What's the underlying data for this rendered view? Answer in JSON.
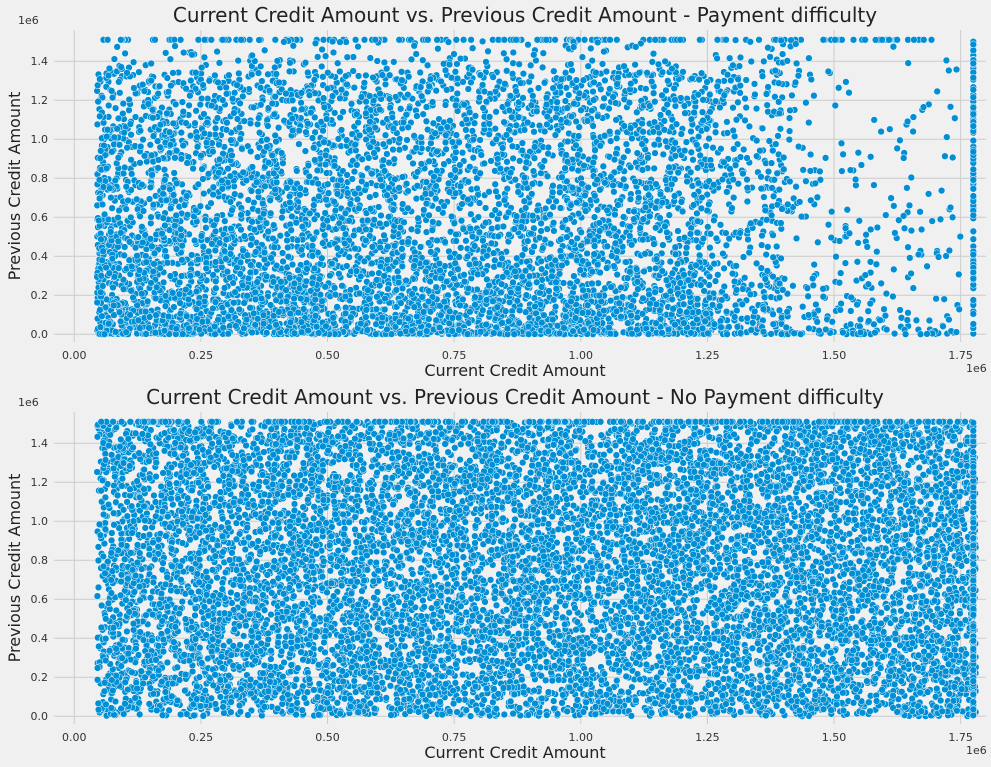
{
  "chart_data": [
    {
      "type": "scatter",
      "title": "Current Credit Amount vs. Previous Credit Amount - Payment difficulty",
      "xlabel": "Current Credit Amount",
      "ylabel": "Previous Credit Amount",
      "x_offset_label": "1e6",
      "y_offset_label": "1e6",
      "x_scale": 1000000,
      "y_scale": 1000000,
      "xlim": [
        -0.04,
        1.8
      ],
      "ylim": [
        -0.04,
        1.56
      ],
      "xticks": [
        0,
        250000,
        500000,
        750000,
        1000000,
        1250000,
        1500000,
        1750000
      ],
      "xtick_labels": [
        "0.00",
        "0.25",
        "0.50",
        "0.75",
        "1.00",
        "1.25",
        "1.50",
        "1.75"
      ],
      "yticks": [
        0,
        200000,
        400000,
        600000,
        800000,
        1000000,
        1200000,
        1400000
      ],
      "ytick_labels": [
        "0.0",
        "0.2",
        "0.4",
        "0.6",
        "0.8",
        "1.0",
        "1.2",
        "1.4"
      ],
      "grid": true,
      "marker_color": "#008fd5",
      "density": "sparse",
      "point_cloud": {
        "x_range": [
          45000,
          1780000
        ],
        "y_range": [
          0,
          1510000
        ],
        "y_cap_value": 1510000,
        "x_cap_value": 1775000,
        "approx_points": 6500,
        "dense_below_y": 1350000
      }
    },
    {
      "type": "scatter",
      "title": "Current Credit Amount vs. Previous Credit Amount - No Payment difficulty",
      "xlabel": "Current Credit Amount",
      "ylabel": "Previous Credit Amount",
      "x_offset_label": "1e6",
      "y_offset_label": "1e6",
      "x_scale": 1000000,
      "y_scale": 1000000,
      "xlim": [
        -0.04,
        1.8
      ],
      "ylim": [
        -0.04,
        1.56
      ],
      "xticks": [
        0,
        250000,
        500000,
        750000,
        1000000,
        1250000,
        1500000,
        1750000
      ],
      "xtick_labels": [
        "0.00",
        "0.25",
        "0.50",
        "0.75",
        "1.00",
        "1.25",
        "1.50",
        "1.75"
      ],
      "yticks": [
        0,
        200000,
        400000,
        600000,
        800000,
        1000000,
        1200000,
        1400000
      ],
      "ytick_labels": [
        "0.0",
        "0.2",
        "0.4",
        "0.6",
        "0.8",
        "1.0",
        "1.2",
        "1.4"
      ],
      "grid": true,
      "marker_color": "#008fd5",
      "density": "saturated",
      "point_cloud": {
        "x_range": [
          45000,
          1780000
        ],
        "y_range": [
          0,
          1510000
        ],
        "y_cap_value": 1510000,
        "x_cap_value": 1775000,
        "approx_points": 11000,
        "dense_below_y": 1510000
      }
    }
  ]
}
